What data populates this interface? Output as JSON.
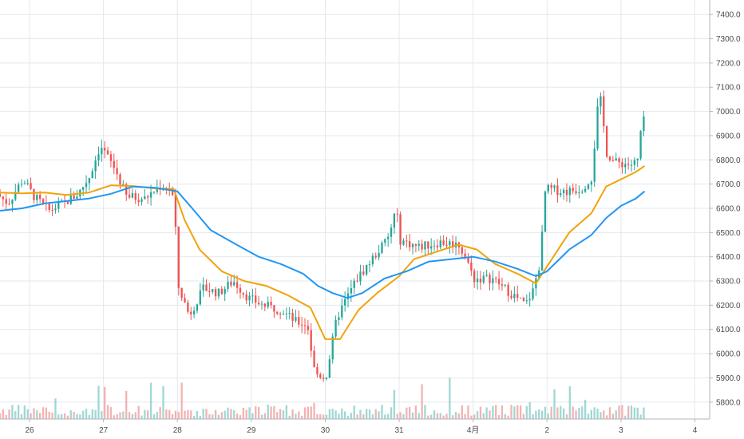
{
  "chart_data": {
    "type": "candlestick",
    "title": "",
    "y_axis": {
      "ticks": [
        "7400.0",
        "7300.0",
        "7200.0",
        "7100.0",
        "7000.0",
        "6900.0",
        "6800.0",
        "6700.0",
        "6600.0",
        "6500.0",
        "6400.0",
        "6300.0",
        "6200.0",
        "6100.0",
        "6000.0",
        "5900.0",
        "5800.0"
      ],
      "tick_values": [
        7400,
        7300,
        7200,
        7100,
        7000,
        6900,
        6800,
        6700,
        6600,
        6500,
        6400,
        6300,
        6200,
        6100,
        6000,
        5900,
        5800
      ],
      "ylim": [
        5730,
        7460
      ]
    },
    "x_axis": {
      "labels": [
        "26",
        "27",
        "28",
        "29",
        "30",
        "31",
        "4月",
        "2",
        "3",
        "4"
      ],
      "xlim": [
        25.6,
        35.2
      ],
      "label_positions": [
        26,
        27,
        28,
        29,
        30,
        31,
        32,
        33,
        34,
        35
      ]
    },
    "grid": true,
    "colors": {
      "up": "#26a69a",
      "down": "#ef5350",
      "vol_up": "#80cbc4",
      "vol_down": "#ef9a9a",
      "ma_fast": "#f0a30a",
      "ma_slow": "#2196f3"
    },
    "price_anchors": [
      [
        25.6,
        6660
      ],
      [
        25.75,
        6620
      ],
      [
        25.95,
        6720
      ],
      [
        26.1,
        6650
      ],
      [
        26.3,
        6590
      ],
      [
        26.5,
        6620
      ],
      [
        26.7,
        6660
      ],
      [
        26.85,
        6730
      ],
      [
        27.0,
        6860
      ],
      [
        27.2,
        6760
      ],
      [
        27.35,
        6650
      ],
      [
        27.6,
        6640
      ],
      [
        27.8,
        6690
      ],
      [
        27.95,
        6680
      ],
      [
        28.0,
        6620
      ],
      [
        28.05,
        6280
      ],
      [
        28.2,
        6160
      ],
      [
        28.4,
        6270
      ],
      [
        28.6,
        6250
      ],
      [
        28.8,
        6300
      ],
      [
        29.0,
        6230
      ],
      [
        29.2,
        6200
      ],
      [
        29.45,
        6180
      ],
      [
        29.65,
        6130
      ],
      [
        29.8,
        6120
      ],
      [
        29.9,
        5920
      ],
      [
        30.05,
        5900
      ],
      [
        30.2,
        6150
      ],
      [
        30.45,
        6300
      ],
      [
        30.7,
        6400
      ],
      [
        30.9,
        6480
      ],
      [
        31.0,
        6600
      ],
      [
        31.05,
        6470
      ],
      [
        31.3,
        6440
      ],
      [
        31.6,
        6460
      ],
      [
        31.85,
        6450
      ],
      [
        31.95,
        6390
      ],
      [
        32.05,
        6310
      ],
      [
        32.3,
        6310
      ],
      [
        32.55,
        6250
      ],
      [
        32.75,
        6200
      ],
      [
        32.85,
        6260
      ],
      [
        32.95,
        6380
      ],
      [
        33.02,
        6680
      ],
      [
        33.3,
        6670
      ],
      [
        33.5,
        6680
      ],
      [
        33.65,
        6730
      ],
      [
        33.72,
        7000
      ],
      [
        33.76,
        7060
      ],
      [
        33.85,
        6830
      ],
      [
        33.95,
        6790
      ],
      [
        34.2,
        6780
      ],
      [
        34.28,
        6800
      ],
      [
        34.32,
        6960
      ]
    ],
    "moving_averages": [
      {
        "name": "",
        "points": [
          [
            25.6,
            6665
          ],
          [
            25.9,
            6662
          ],
          [
            26.2,
            6665
          ],
          [
            26.5,
            6655
          ],
          [
            26.8,
            6665
          ],
          [
            27.1,
            6695
          ],
          [
            27.4,
            6692
          ],
          [
            27.7,
            6682
          ],
          [
            27.95,
            6680
          ],
          [
            28.1,
            6550
          ],
          [
            28.3,
            6430
          ],
          [
            28.6,
            6340
          ],
          [
            28.9,
            6300
          ],
          [
            29.2,
            6280
          ],
          [
            29.5,
            6240
          ],
          [
            29.8,
            6190
          ],
          [
            30.0,
            6060
          ],
          [
            30.2,
            6060
          ],
          [
            30.45,
            6180
          ],
          [
            30.7,
            6250
          ],
          [
            31.0,
            6320
          ],
          [
            31.2,
            6390
          ],
          [
            31.5,
            6420
          ],
          [
            31.8,
            6450
          ],
          [
            32.05,
            6430
          ],
          [
            32.3,
            6370
          ],
          [
            32.6,
            6330
          ],
          [
            32.85,
            6290
          ],
          [
            33.0,
            6360
          ],
          [
            33.3,
            6500
          ],
          [
            33.6,
            6580
          ],
          [
            33.8,
            6690
          ],
          [
            34.0,
            6720
          ],
          [
            34.2,
            6750
          ],
          [
            34.32,
            6775
          ]
        ]
      },
      {
        "name": "",
        "points": [
          [
            25.6,
            6590
          ],
          [
            25.9,
            6600
          ],
          [
            26.2,
            6620
          ],
          [
            26.5,
            6630
          ],
          [
            26.8,
            6640
          ],
          [
            27.1,
            6660
          ],
          [
            27.4,
            6690
          ],
          [
            27.7,
            6685
          ],
          [
            28.0,
            6670
          ],
          [
            28.2,
            6600
          ],
          [
            28.45,
            6510
          ],
          [
            28.8,
            6450
          ],
          [
            29.1,
            6400
          ],
          [
            29.4,
            6370
          ],
          [
            29.7,
            6330
          ],
          [
            29.9,
            6280
          ],
          [
            30.1,
            6250
          ],
          [
            30.3,
            6230
          ],
          [
            30.5,
            6250
          ],
          [
            30.8,
            6310
          ],
          [
            31.1,
            6340
          ],
          [
            31.4,
            6380
          ],
          [
            31.7,
            6390
          ],
          [
            32.0,
            6400
          ],
          [
            32.3,
            6380
          ],
          [
            32.6,
            6350
          ],
          [
            32.85,
            6320
          ],
          [
            33.0,
            6340
          ],
          [
            33.3,
            6430
          ],
          [
            33.6,
            6490
          ],
          [
            33.8,
            6560
          ],
          [
            34.0,
            6610
          ],
          [
            34.2,
            6640
          ],
          [
            34.32,
            6670
          ]
        ]
      }
    ]
  }
}
